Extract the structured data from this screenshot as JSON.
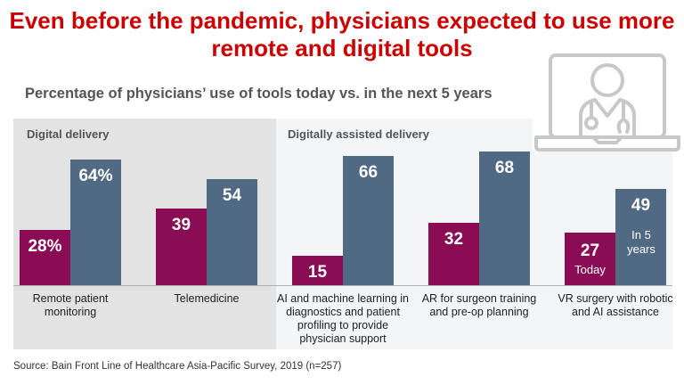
{
  "title": "Even before the pandemic, physicians expected to use more remote and digital tools",
  "source": "Source: Bain Front Line of Healthcare Asia-Pacific Survey, 2019 (n=257)",
  "icon": "laptop-doctor-icon",
  "colors": {
    "today": "#8a0c55",
    "in_5_years": "#506a84",
    "title": "#cc0000"
  },
  "chart_data": {
    "type": "bar",
    "title": "Percentage of physicians’ use of tools today vs. in the next 5 years",
    "groups": [
      {
        "label": "Digital delivery"
      },
      {
        "label": "Digitally assisted delivery"
      }
    ],
    "categories": [
      "Remote patient monitoring",
      "Telemedicine",
      "AI and machine learning in diagnostics and patient profiling to provide physician support",
      "AR for surgeon training and pre-op planning",
      "VR surgery with robotic and AI assistance"
    ],
    "series": [
      {
        "name": "Today",
        "values": [
          28,
          39,
          15,
          32,
          27
        ],
        "labels": [
          "28%",
          "39",
          "15",
          "32",
          "27"
        ]
      },
      {
        "name": "In 5 years",
        "values": [
          64,
          54,
          66,
          68,
          49
        ],
        "labels": [
          "64%",
          "54",
          "66",
          "68",
          "49"
        ]
      }
    ],
    "ylim": [
      0,
      100
    ]
  }
}
